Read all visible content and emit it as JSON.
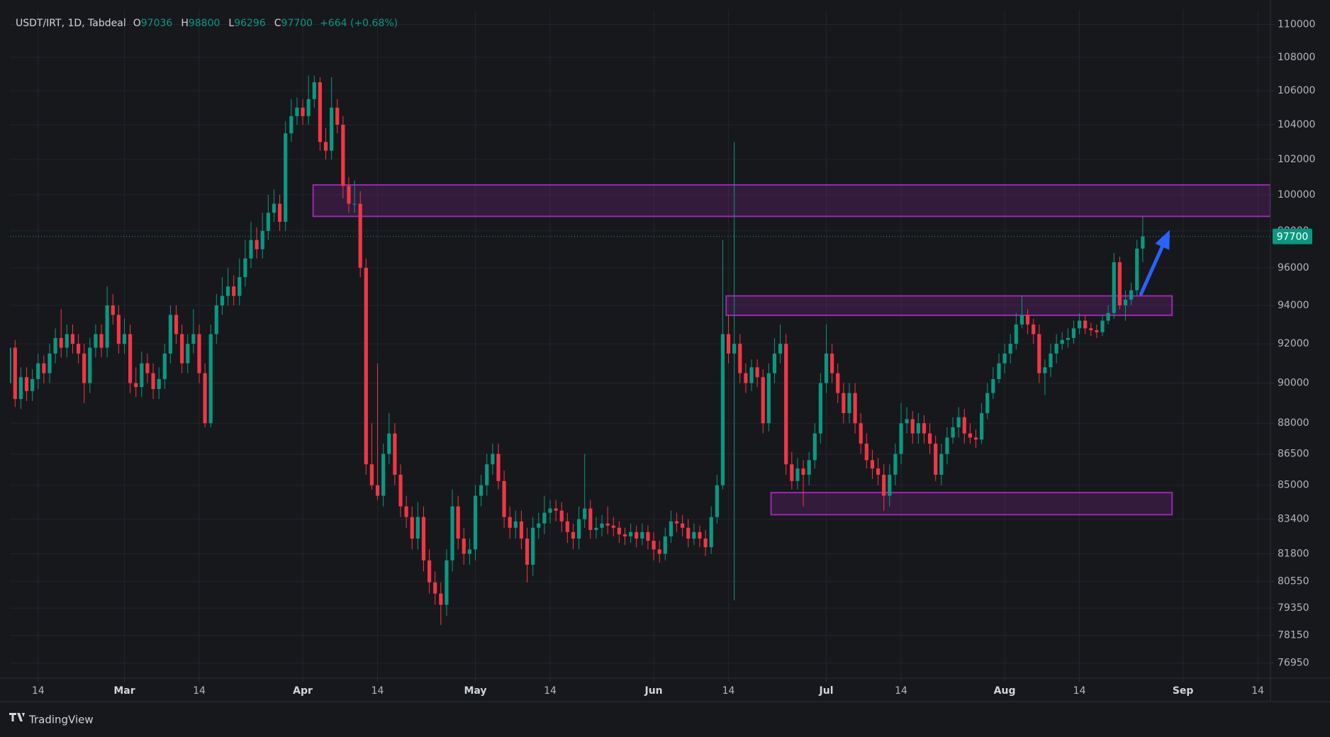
{
  "chart_data": {
    "type": "candlestick",
    "symbol": "USDT/IRT, 1D, Tabdeal",
    "ohlc_labels": [
      "O",
      "H",
      "L",
      "C"
    ],
    "change_label": "+664 (+0.68%)",
    "footer": "TradingView",
    "log_y": true,
    "grid": true,
    "up_color": "#089981",
    "down_color": "#f23645",
    "xlim": [
      9.1,
      228.2
    ],
    "xticks": [
      {
        "value": 14,
        "label": "14"
      },
      {
        "value": 29,
        "label": "Mar"
      },
      {
        "value": 42,
        "label": "14"
      },
      {
        "value": 60,
        "label": "Apr"
      },
      {
        "value": 73,
        "label": "14"
      },
      {
        "value": 90,
        "label": "May"
      },
      {
        "value": 103,
        "label": "14"
      },
      {
        "value": 121,
        "label": "Jun"
      },
      {
        "value": 134,
        "label": "14"
      },
      {
        "value": 151,
        "label": "Jul"
      },
      {
        "value": 164,
        "label": "14"
      },
      {
        "value": 182,
        "label": "Aug"
      },
      {
        "value": 195,
        "label": "14"
      },
      {
        "value": 213,
        "label": "Sep"
      },
      {
        "value": 226,
        "label": "14"
      }
    ],
    "ylim": [
      76300,
      110900
    ],
    "yticks": [
      76950,
      78150,
      79350,
      80550,
      81800,
      83400,
      85000,
      86500,
      88000,
      90000,
      92000,
      94000,
      96000,
      98000,
      100000,
      102000,
      104000,
      106000,
      108000,
      110000
    ],
    "x": [
      9,
      10,
      11,
      12,
      13,
      14,
      15,
      16,
      17,
      18,
      19,
      20,
      21,
      22,
      23,
      24,
      25,
      26,
      27,
      28,
      29,
      30,
      31,
      32,
      33,
      34,
      35,
      36,
      37,
      38,
      39,
      40,
      41,
      42,
      43,
      44,
      45,
      46,
      47,
      48,
      49,
      50,
      51,
      52,
      53,
      54,
      55,
      56,
      57,
      58,
      59,
      60,
      61,
      62,
      63,
      64,
      65,
      66,
      67,
      68,
      69,
      70,
      71,
      72,
      73,
      74,
      75,
      76,
      77,
      78,
      79,
      80,
      81,
      82,
      83,
      84,
      85,
      86,
      87,
      88,
      89,
      90,
      91,
      92,
      93,
      94,
      95,
      96,
      97,
      98,
      99,
      100,
      101,
      102,
      103,
      104,
      105,
      106,
      107,
      108,
      109,
      110,
      111,
      112,
      113,
      114,
      115,
      116,
      117,
      118,
      119,
      120,
      121,
      122,
      123,
      124,
      125,
      126,
      127,
      128,
      129,
      130,
      131,
      132,
      133,
      134,
      135,
      136,
      137,
      138,
      139,
      140,
      141,
      142,
      143,
      144,
      145,
      146,
      147,
      148,
      149,
      150,
      151,
      152,
      153,
      154,
      155,
      156,
      157,
      158,
      159,
      160,
      161,
      162,
      163,
      164,
      165,
      166,
      167,
      168,
      169,
      170,
      171,
      172,
      173,
      174,
      175,
      176,
      177,
      178,
      179,
      180,
      181,
      182,
      183,
      184,
      185,
      186,
      187,
      188,
      189,
      190,
      191,
      192,
      193,
      194,
      195,
      196,
      197,
      198,
      199,
      200,
      201,
      202,
      203,
      204,
      205,
      206
    ],
    "ohlc": [
      [
        90000,
        92400,
        89600,
        91800
      ],
      [
        91800,
        92200,
        88800,
        89200
      ],
      [
        89200,
        90800,
        88700,
        90300
      ],
      [
        90300,
        90800,
        89100,
        89600
      ],
      [
        89600,
        90700,
        89100,
        90200
      ],
      [
        90200,
        91500,
        89700,
        91000
      ],
      [
        91000,
        91400,
        90000,
        90500
      ],
      [
        90500,
        92000,
        90000,
        91500
      ],
      [
        91500,
        92800,
        91000,
        92300
      ],
      [
        92300,
        93800,
        91300,
        91800
      ],
      [
        91800,
        93000,
        91300,
        92500
      ],
      [
        92500,
        93000,
        91500,
        92000
      ],
      [
        92000,
        92500,
        91000,
        91500
      ],
      [
        91500,
        92000,
        89000,
        90000
      ],
      [
        90000,
        92300,
        89500,
        91800
      ],
      [
        91800,
        93000,
        91300,
        92500
      ],
      [
        92500,
        93000,
        91300,
        91800
      ],
      [
        91800,
        95000,
        91300,
        94000
      ],
      [
        94000,
        94600,
        93000,
        93500
      ],
      [
        93500,
        94000,
        91500,
        92000
      ],
      [
        92000,
        93300,
        91500,
        92500
      ],
      [
        92500,
        93000,
        89500,
        90000
      ],
      [
        90000,
        90800,
        89300,
        89800
      ],
      [
        89800,
        91600,
        89300,
        91000
      ],
      [
        91000,
        91500,
        90000,
        90500
      ],
      [
        90500,
        91000,
        89200,
        89700
      ],
      [
        89700,
        90800,
        89200,
        90200
      ],
      [
        90200,
        92000,
        89700,
        91500
      ],
      [
        91500,
        94000,
        91000,
        93500
      ],
      [
        93500,
        94000,
        92000,
        92500
      ],
      [
        92500,
        93000,
        90500,
        91000
      ],
      [
        91000,
        92500,
        90500,
        92000
      ],
      [
        92000,
        93800,
        91500,
        92500
      ],
      [
        92500,
        93000,
        90000,
        90500
      ],
      [
        90500,
        91000,
        87800,
        88000
      ],
      [
        88000,
        93000,
        87800,
        92500
      ],
      [
        92500,
        94600,
        92000,
        94000
      ],
      [
        94000,
        95500,
        93500,
        94500
      ],
      [
        94500,
        96000,
        94000,
        95000
      ],
      [
        95000,
        95600,
        94000,
        94500
      ],
      [
        94500,
        96500,
        94000,
        95500
      ],
      [
        95500,
        97500,
        95000,
        96500
      ],
      [
        96500,
        98500,
        96000,
        97500
      ],
      [
        97500,
        98200,
        96500,
        97000
      ],
      [
        97000,
        99000,
        96500,
        98000
      ],
      [
        98000,
        100000,
        97500,
        99000
      ],
      [
        99000,
        100300,
        98500,
        99500
      ],
      [
        99500,
        100000,
        98000,
        98500
      ],
      [
        98500,
        104200,
        98000,
        103500
      ],
      [
        103500,
        105500,
        103000,
        104500
      ],
      [
        104500,
        105600,
        104000,
        105000
      ],
      [
        105000,
        105500,
        104000,
        104500
      ],
      [
        104500,
        106900,
        104000,
        105500
      ],
      [
        105500,
        106900,
        105000,
        106500
      ],
      [
        106500,
        106800,
        102500,
        103000
      ],
      [
        103000,
        103800,
        102000,
        102500
      ],
      [
        102500,
        106800,
        102000,
        105000
      ],
      [
        105000,
        105500,
        103500,
        104000
      ],
      [
        104000,
        104500,
        99800,
        100500
      ],
      [
        100500,
        101000,
        99000,
        99500
      ],
      [
        99500,
        100800,
        99000,
        99500
      ],
      [
        99500,
        100200,
        95500,
        96000
      ],
      [
        96000,
        96500,
        85500,
        86000
      ],
      [
        86000,
        88000,
        84800,
        85000
      ],
      [
        85000,
        91000,
        84300,
        84500
      ],
      [
        84500,
        87000,
        84000,
        86500
      ],
      [
        86500,
        88500,
        86000,
        87500
      ],
      [
        87500,
        88000,
        85000,
        85500
      ],
      [
        85500,
        86000,
        83500,
        84000
      ],
      [
        84000,
        84500,
        83000,
        83500
      ],
      [
        83500,
        84000,
        82000,
        82500
      ],
      [
        82500,
        84200,
        82000,
        83500
      ],
      [
        83500,
        84000,
        81000,
        81500
      ],
      [
        81500,
        82000,
        80000,
        80500
      ],
      [
        80500,
        81000,
        79500,
        80000
      ],
      [
        80000,
        80500,
        78600,
        79500
      ],
      [
        79500,
        82000,
        79000,
        81500
      ],
      [
        81500,
        84800,
        81000,
        84000
      ],
      [
        84000,
        84500,
        82000,
        82500
      ],
      [
        82500,
        83000,
        81300,
        81800
      ],
      [
        81800,
        82500,
        81300,
        82000
      ],
      [
        82000,
        85000,
        81500,
        84500
      ],
      [
        84500,
        85500,
        84000,
        85000
      ],
      [
        85000,
        86500,
        84500,
        86000
      ],
      [
        86000,
        87000,
        85500,
        86500
      ],
      [
        86500,
        87000,
        84800,
        85200
      ],
      [
        85200,
        85700,
        83000,
        83500
      ],
      [
        83500,
        84000,
        82500,
        83000
      ],
      [
        83000,
        83800,
        82500,
        83300
      ],
      [
        83300,
        83800,
        82000,
        82500
      ],
      [
        82500,
        83000,
        80500,
        81300
      ],
      [
        81300,
        83500,
        80800,
        83000
      ],
      [
        83000,
        83700,
        82500,
        83200
      ],
      [
        83200,
        84500,
        82700,
        83700
      ],
      [
        83700,
        84300,
        83200,
        83900
      ],
      [
        83900,
        84300,
        83300,
        83800
      ],
      [
        83800,
        84200,
        82800,
        83300
      ],
      [
        83300,
        83700,
        82300,
        82800
      ],
      [
        82800,
        83200,
        82000,
        82500
      ],
      [
        82500,
        84000,
        82000,
        83400
      ],
      [
        83400,
        86500,
        83000,
        83900
      ],
      [
        83900,
        84300,
        82500,
        82900
      ],
      [
        82900,
        83500,
        82500,
        83000
      ],
      [
        83000,
        83600,
        82600,
        83200
      ],
      [
        83200,
        84000,
        82700,
        83100
      ],
      [
        83100,
        83500,
        82600,
        83000
      ],
      [
        83000,
        83300,
        82300,
        82700
      ],
      [
        82700,
        83000,
        82200,
        82600
      ],
      [
        82600,
        83200,
        82300,
        82800
      ],
      [
        82800,
        83100,
        82100,
        82500
      ],
      [
        82500,
        83200,
        82200,
        82800
      ],
      [
        82800,
        83100,
        82000,
        82400
      ],
      [
        82400,
        82800,
        81500,
        82000
      ],
      [
        82000,
        82400,
        81400,
        81800
      ],
      [
        81800,
        83000,
        81500,
        82600
      ],
      [
        82600,
        83800,
        82300,
        83300
      ],
      [
        83300,
        83700,
        82800,
        83200
      ],
      [
        83200,
        83600,
        82600,
        83000
      ],
      [
        83000,
        83400,
        82100,
        82500
      ],
      [
        82500,
        83200,
        82200,
        82800
      ],
      [
        82800,
        83100,
        82100,
        82500
      ],
      [
        82500,
        82900,
        81700,
        82100
      ],
      [
        82100,
        84000,
        81800,
        83500
      ],
      [
        83500,
        85500,
        83200,
        85000
      ],
      [
        85000,
        97500,
        84800,
        92500
      ],
      [
        92500,
        93500,
        91000,
        91500
      ],
      [
        91500,
        103000,
        79700,
        92000
      ],
      [
        92000,
        92500,
        90000,
        90500
      ],
      [
        90500,
        91000,
        89500,
        90000
      ],
      [
        90000,
        91200,
        89600,
        90800
      ],
      [
        90800,
        91200,
        89800,
        90300
      ],
      [
        90300,
        90700,
        87500,
        88000
      ],
      [
        88000,
        91000,
        87600,
        90500
      ],
      [
        90500,
        92300,
        90000,
        91500
      ],
      [
        91500,
        93000,
        91000,
        92000
      ],
      [
        92000,
        92500,
        85500,
        86000
      ],
      [
        86000,
        86600,
        84800,
        85200
      ],
      [
        85200,
        86300,
        84800,
        85800
      ],
      [
        85800,
        86200,
        84000,
        85500
      ],
      [
        85500,
        86600,
        85000,
        86200
      ],
      [
        86200,
        88000,
        85800,
        87500
      ],
      [
        87500,
        90500,
        87000,
        90000
      ],
      [
        90000,
        93000,
        89500,
        91500
      ],
      [
        91500,
        92000,
        90000,
        90500
      ],
      [
        90500,
        91000,
        89000,
        89500
      ],
      [
        89500,
        90000,
        88000,
        88500
      ],
      [
        88500,
        90000,
        88000,
        89500
      ],
      [
        89500,
        90000,
        87500,
        88000
      ],
      [
        88000,
        88500,
        86500,
        87000
      ],
      [
        87000,
        87500,
        85800,
        86200
      ],
      [
        86200,
        86700,
        85300,
        85800
      ],
      [
        85800,
        86300,
        85000,
        85500
      ],
      [
        85500,
        86000,
        83800,
        84500
      ],
      [
        84500,
        86000,
        84000,
        85500
      ],
      [
        85500,
        87000,
        85000,
        86500
      ],
      [
        86500,
        89000,
        86000,
        88000
      ],
      [
        88000,
        88800,
        87500,
        88200
      ],
      [
        88200,
        88600,
        87000,
        87500
      ],
      [
        87500,
        88500,
        87000,
        88000
      ],
      [
        88000,
        88400,
        87000,
        87500
      ],
      [
        87500,
        88000,
        86500,
        87000
      ],
      [
        87000,
        87400,
        85200,
        85500
      ],
      [
        85500,
        87000,
        85000,
        86500
      ],
      [
        86500,
        87800,
        86000,
        87300
      ],
      [
        87300,
        88300,
        87000,
        87800
      ],
      [
        87800,
        88800,
        87300,
        88300
      ],
      [
        88300,
        88700,
        87000,
        87500
      ],
      [
        87500,
        88000,
        87000,
        87300
      ],
      [
        87300,
        87700,
        86800,
        87200
      ],
      [
        87200,
        89000,
        87000,
        88500
      ],
      [
        88500,
        90000,
        88200,
        89500
      ],
      [
        89500,
        90800,
        89200,
        90200
      ],
      [
        90200,
        91500,
        90000,
        91000
      ],
      [
        91000,
        92000,
        90500,
        91500
      ],
      [
        91500,
        92500,
        91000,
        92000
      ],
      [
        92000,
        93600,
        91700,
        93000
      ],
      [
        93000,
        94500,
        92800,
        93500
      ],
      [
        93500,
        93800,
        92500,
        93000
      ],
      [
        93000,
        93300,
        92000,
        92500
      ],
      [
        92500,
        93000,
        90000,
        90500
      ],
      [
        90500,
        91200,
        89400,
        90800
      ],
      [
        90800,
        92000,
        90300,
        91500
      ],
      [
        91500,
        92500,
        91000,
        92000
      ],
      [
        92000,
        92600,
        91700,
        92200
      ],
      [
        92200,
        92800,
        91800,
        92300
      ],
      [
        92300,
        93200,
        92000,
        92800
      ],
      [
        92800,
        93600,
        92500,
        93200
      ],
      [
        93200,
        93500,
        92500,
        92800
      ],
      [
        92800,
        93100,
        92400,
        92700
      ],
      [
        92700,
        93000,
        92300,
        92600
      ],
      [
        92600,
        93500,
        92400,
        93200
      ],
      [
        93200,
        94000,
        93000,
        93600
      ],
      [
        93600,
        96800,
        93300,
        96300
      ],
      [
        96300,
        96600,
        93800,
        94000
      ],
      [
        94000,
        94800,
        93200,
        94300
      ],
      [
        94300,
        95200,
        94000,
        94800
      ],
      [
        94800,
        97500,
        94500,
        97036
      ],
      [
        97036,
        98800,
        96296,
        97700
      ]
    ],
    "zones": [
      {
        "x": [
          61.8,
          228.2
        ],
        "y": [
          98800,
          100555
        ],
        "color": "#9c27b0"
      },
      {
        "x": [
          133.6,
          211.1
        ],
        "y": [
          93480,
          94500
        ],
        "color": "#9c27b0"
      },
      {
        "x": [
          141.4,
          211.1
        ],
        "y": [
          83610,
          84650
        ],
        "color": "#9c27b0"
      }
    ],
    "arrow": {
      "x": [
        205.7,
        210.7
      ],
      "y": [
        94600,
        98050
      ],
      "color": "#2962ff"
    }
  }
}
